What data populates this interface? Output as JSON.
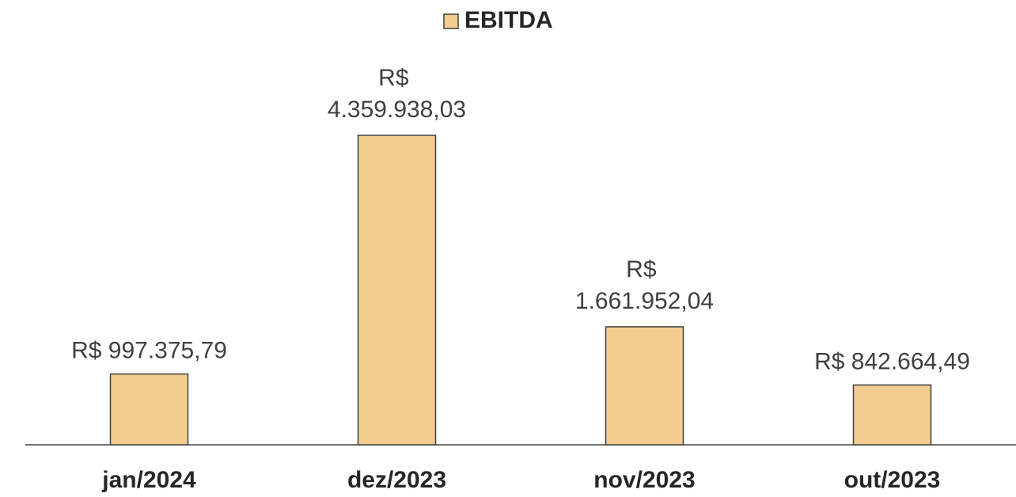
{
  "chart_data": {
    "type": "bar",
    "categories": [
      "jan/2024",
      "dez/2023",
      "nov/2023",
      "out/2023"
    ],
    "series": [
      {
        "name": "EBITDA",
        "color": "#f2cd8f",
        "values": [
          997375.79,
          4359938.03,
          1661952.04,
          842664.49
        ],
        "value_labels": [
          "R$ 997.375,79",
          "R$ 4.359.938,03",
          "R$ 1.661.952,04",
          "R$ 842.664,49"
        ]
      }
    ],
    "legend": "top"
  }
}
